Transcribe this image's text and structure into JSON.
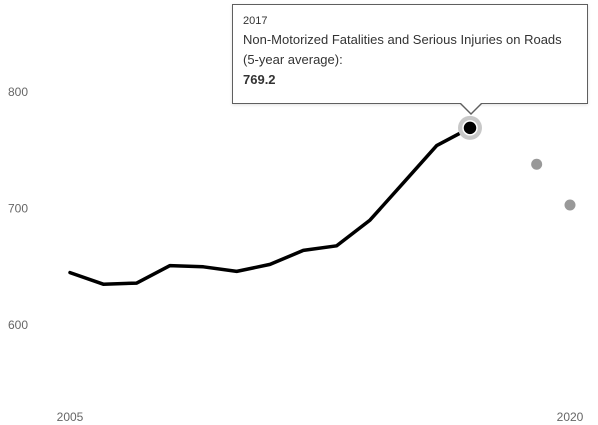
{
  "chart_data": {
    "type": "line",
    "x_ticks": [
      "2005",
      "2020"
    ],
    "y_ticks": [
      "600",
      "700",
      "800"
    ],
    "ylim": [
      540,
      860
    ],
    "xlim": [
      2005,
      2020
    ],
    "grid": false,
    "series": [
      {
        "x": [
          2005,
          2006,
          2007,
          2008,
          2009,
          2010,
          2011,
          2012,
          2013,
          2014,
          2015,
          2016,
          2017
        ],
        "y": [
          645,
          635,
          636,
          651,
          650,
          646,
          652,
          664,
          668,
          690,
          722,
          754,
          769.2
        ],
        "color": "#000000"
      },
      {
        "x": [
          2019,
          2020
        ],
        "y": [
          738,
          703
        ],
        "color": "#999999"
      }
    ],
    "highlight": {
      "x": 2017,
      "y": 769.2
    }
  },
  "tooltip": {
    "year": "2017",
    "label": "Non-Motorized Fatalities and Serious Injuries on Roads (5-year average):",
    "value": "769.2"
  },
  "colors": {
    "line": "#000000",
    "points": "#999999",
    "highlight_halo": "#c8c8c8",
    "tick_text": "#666666"
  }
}
